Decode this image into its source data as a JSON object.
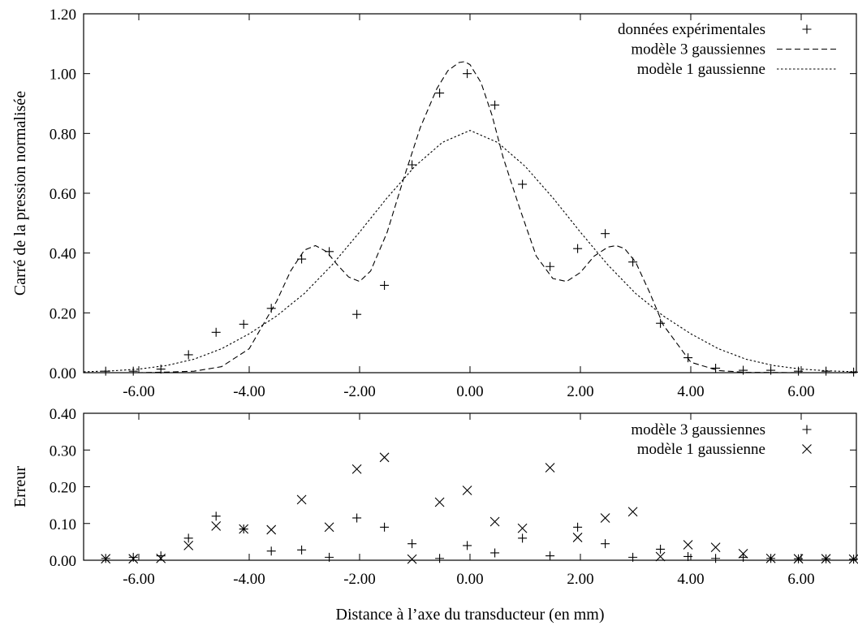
{
  "chart_data": [
    {
      "type": "scatter",
      "ylabel": "Carré de la pression normalisée",
      "xlim": [
        -7,
        7
      ],
      "ylim": [
        0,
        1.2
      ],
      "xticks": [
        "-6.00",
        "-4.00",
        "-2.00",
        "0.00",
        "2.00",
        "4.00",
        "6.00"
      ],
      "yticks": [
        "0.00",
        "0.20",
        "0.40",
        "0.60",
        "0.80",
        "1.00",
        "1.20"
      ],
      "grid": false,
      "legend_position": "top-right",
      "series": [
        {
          "name": "données expérimentales",
          "kind": "points",
          "marker": "plus",
          "x": [
            -6.6,
            -6.1,
            -5.6,
            -5.1,
            -4.6,
            -4.1,
            -3.6,
            -3.05,
            -2.55,
            -2.05,
            -1.55,
            -1.05,
            -0.55,
            -0.05,
            0.45,
            0.95,
            1.45,
            1.95,
            2.45,
            2.95,
            3.45,
            3.95,
            4.45,
            4.95,
            5.45,
            5.95,
            6.45,
            6.95
          ],
          "y": [
            0.005,
            0.005,
            0.012,
            0.06,
            0.135,
            0.162,
            0.215,
            0.38,
            0.405,
            0.195,
            0.292,
            0.695,
            0.935,
            1.0,
            0.895,
            0.63,
            0.355,
            0.415,
            0.465,
            0.37,
            0.165,
            0.05,
            0.015,
            0.008,
            0.008,
            0.005,
            0.005,
            0.002
          ]
        },
        {
          "name": "modèle 3 gaussiennes",
          "kind": "line",
          "dash": "dashed",
          "x": [
            -7,
            -6,
            -5.5,
            -5,
            -4.5,
            -4,
            -3.5,
            -3.25,
            -3,
            -2.8,
            -2.6,
            -2.4,
            -2.2,
            -2,
            -1.8,
            -1.5,
            -1.2,
            -0.9,
            -0.6,
            -0.4,
            -0.2,
            -0.1,
            0,
            0.2,
            0.4,
            0.6,
            0.9,
            1.2,
            1.5,
            1.75,
            2,
            2.25,
            2.5,
            2.65,
            2.8,
            3,
            3.25,
            3.5,
            4,
            4.5,
            5,
            6,
            7
          ],
          "y": [
            0,
            0,
            0.002,
            0.005,
            0.02,
            0.08,
            0.24,
            0.34,
            0.41,
            0.425,
            0.405,
            0.36,
            0.32,
            0.305,
            0.34,
            0.47,
            0.65,
            0.82,
            0.95,
            1.01,
            1.037,
            1.04,
            1.03,
            0.97,
            0.86,
            0.72,
            0.55,
            0.39,
            0.315,
            0.305,
            0.335,
            0.39,
            0.42,
            0.425,
            0.415,
            0.37,
            0.27,
            0.16,
            0.035,
            0.007,
            0.001,
            0,
            0
          ]
        },
        {
          "name": "modèle 1 gaussienne",
          "kind": "line",
          "dash": "dotted",
          "x": [
            -7,
            -6.5,
            -6,
            -5.5,
            -5,
            -4.5,
            -4,
            -3.5,
            -3,
            -2.5,
            -2,
            -1.5,
            -1,
            -0.5,
            0,
            0.5,
            1,
            1.5,
            2,
            2.5,
            3,
            3.5,
            4,
            4.5,
            5,
            5.5,
            6,
            6.5,
            7
          ],
          "y": [
            0.003,
            0.006,
            0.012,
            0.024,
            0.045,
            0.08,
            0.13,
            0.19,
            0.265,
            0.36,
            0.47,
            0.585,
            0.69,
            0.77,
            0.81,
            0.77,
            0.69,
            0.585,
            0.47,
            0.36,
            0.265,
            0.19,
            0.13,
            0.08,
            0.045,
            0.024,
            0.012,
            0.006,
            0.003
          ]
        }
      ]
    },
    {
      "type": "scatter",
      "xlabel": "Distance à l’axe du transducteur (en mm)",
      "ylabel": "Erreur",
      "xlim": [
        -7,
        7
      ],
      "ylim": [
        0,
        0.4
      ],
      "xticks": [
        "-6.00",
        "-4.00",
        "-2.00",
        "0.00",
        "2.00",
        "4.00",
        "6.00"
      ],
      "yticks": [
        "0.00",
        "0.10",
        "0.20",
        "0.30",
        "0.40"
      ],
      "grid": false,
      "legend_position": "top-right",
      "series": [
        {
          "name": "modèle 3 gaussiennes",
          "kind": "points",
          "marker": "plus",
          "x": [
            -6.6,
            -6.1,
            -5.6,
            -5.1,
            -4.6,
            -4.1,
            -3.6,
            -3.05,
            -2.55,
            -2.05,
            -1.55,
            -1.05,
            -0.55,
            -0.05,
            0.45,
            0.95,
            1.45,
            1.95,
            2.45,
            2.95,
            3.45,
            3.95,
            4.45,
            4.95,
            5.45,
            5.95,
            6.45,
            6.95
          ],
          "y": [
            0.005,
            0.008,
            0.012,
            0.06,
            0.12,
            0.085,
            0.025,
            0.028,
            0.008,
            0.115,
            0.09,
            0.045,
            0.005,
            0.04,
            0.02,
            0.06,
            0.012,
            0.09,
            0.045,
            0.008,
            0.03,
            0.01,
            0.005,
            0.008,
            0.005,
            0.004,
            0.004,
            0.003
          ]
        },
        {
          "name": "modèle 1 gaussienne",
          "kind": "points",
          "marker": "cross",
          "x": [
            -6.6,
            -6.1,
            -5.6,
            -5.1,
            -4.6,
            -4.1,
            -3.6,
            -3.05,
            -2.55,
            -2.05,
            -1.55,
            -1.05,
            -0.55,
            -0.05,
            0.45,
            0.95,
            1.45,
            1.95,
            2.45,
            2.95,
            3.45,
            3.95,
            4.45,
            4.95,
            5.45,
            5.95,
            6.45,
            6.95
          ],
          "y": [
            0.004,
            0.004,
            0.005,
            0.04,
            0.093,
            0.085,
            0.083,
            0.165,
            0.09,
            0.248,
            0.28,
            0.003,
            0.158,
            0.19,
            0.105,
            0.087,
            0.252,
            0.062,
            0.115,
            0.132,
            0.01,
            0.042,
            0.035,
            0.018,
            0.005,
            0.004,
            0.004,
            0.003
          ]
        }
      ]
    }
  ]
}
